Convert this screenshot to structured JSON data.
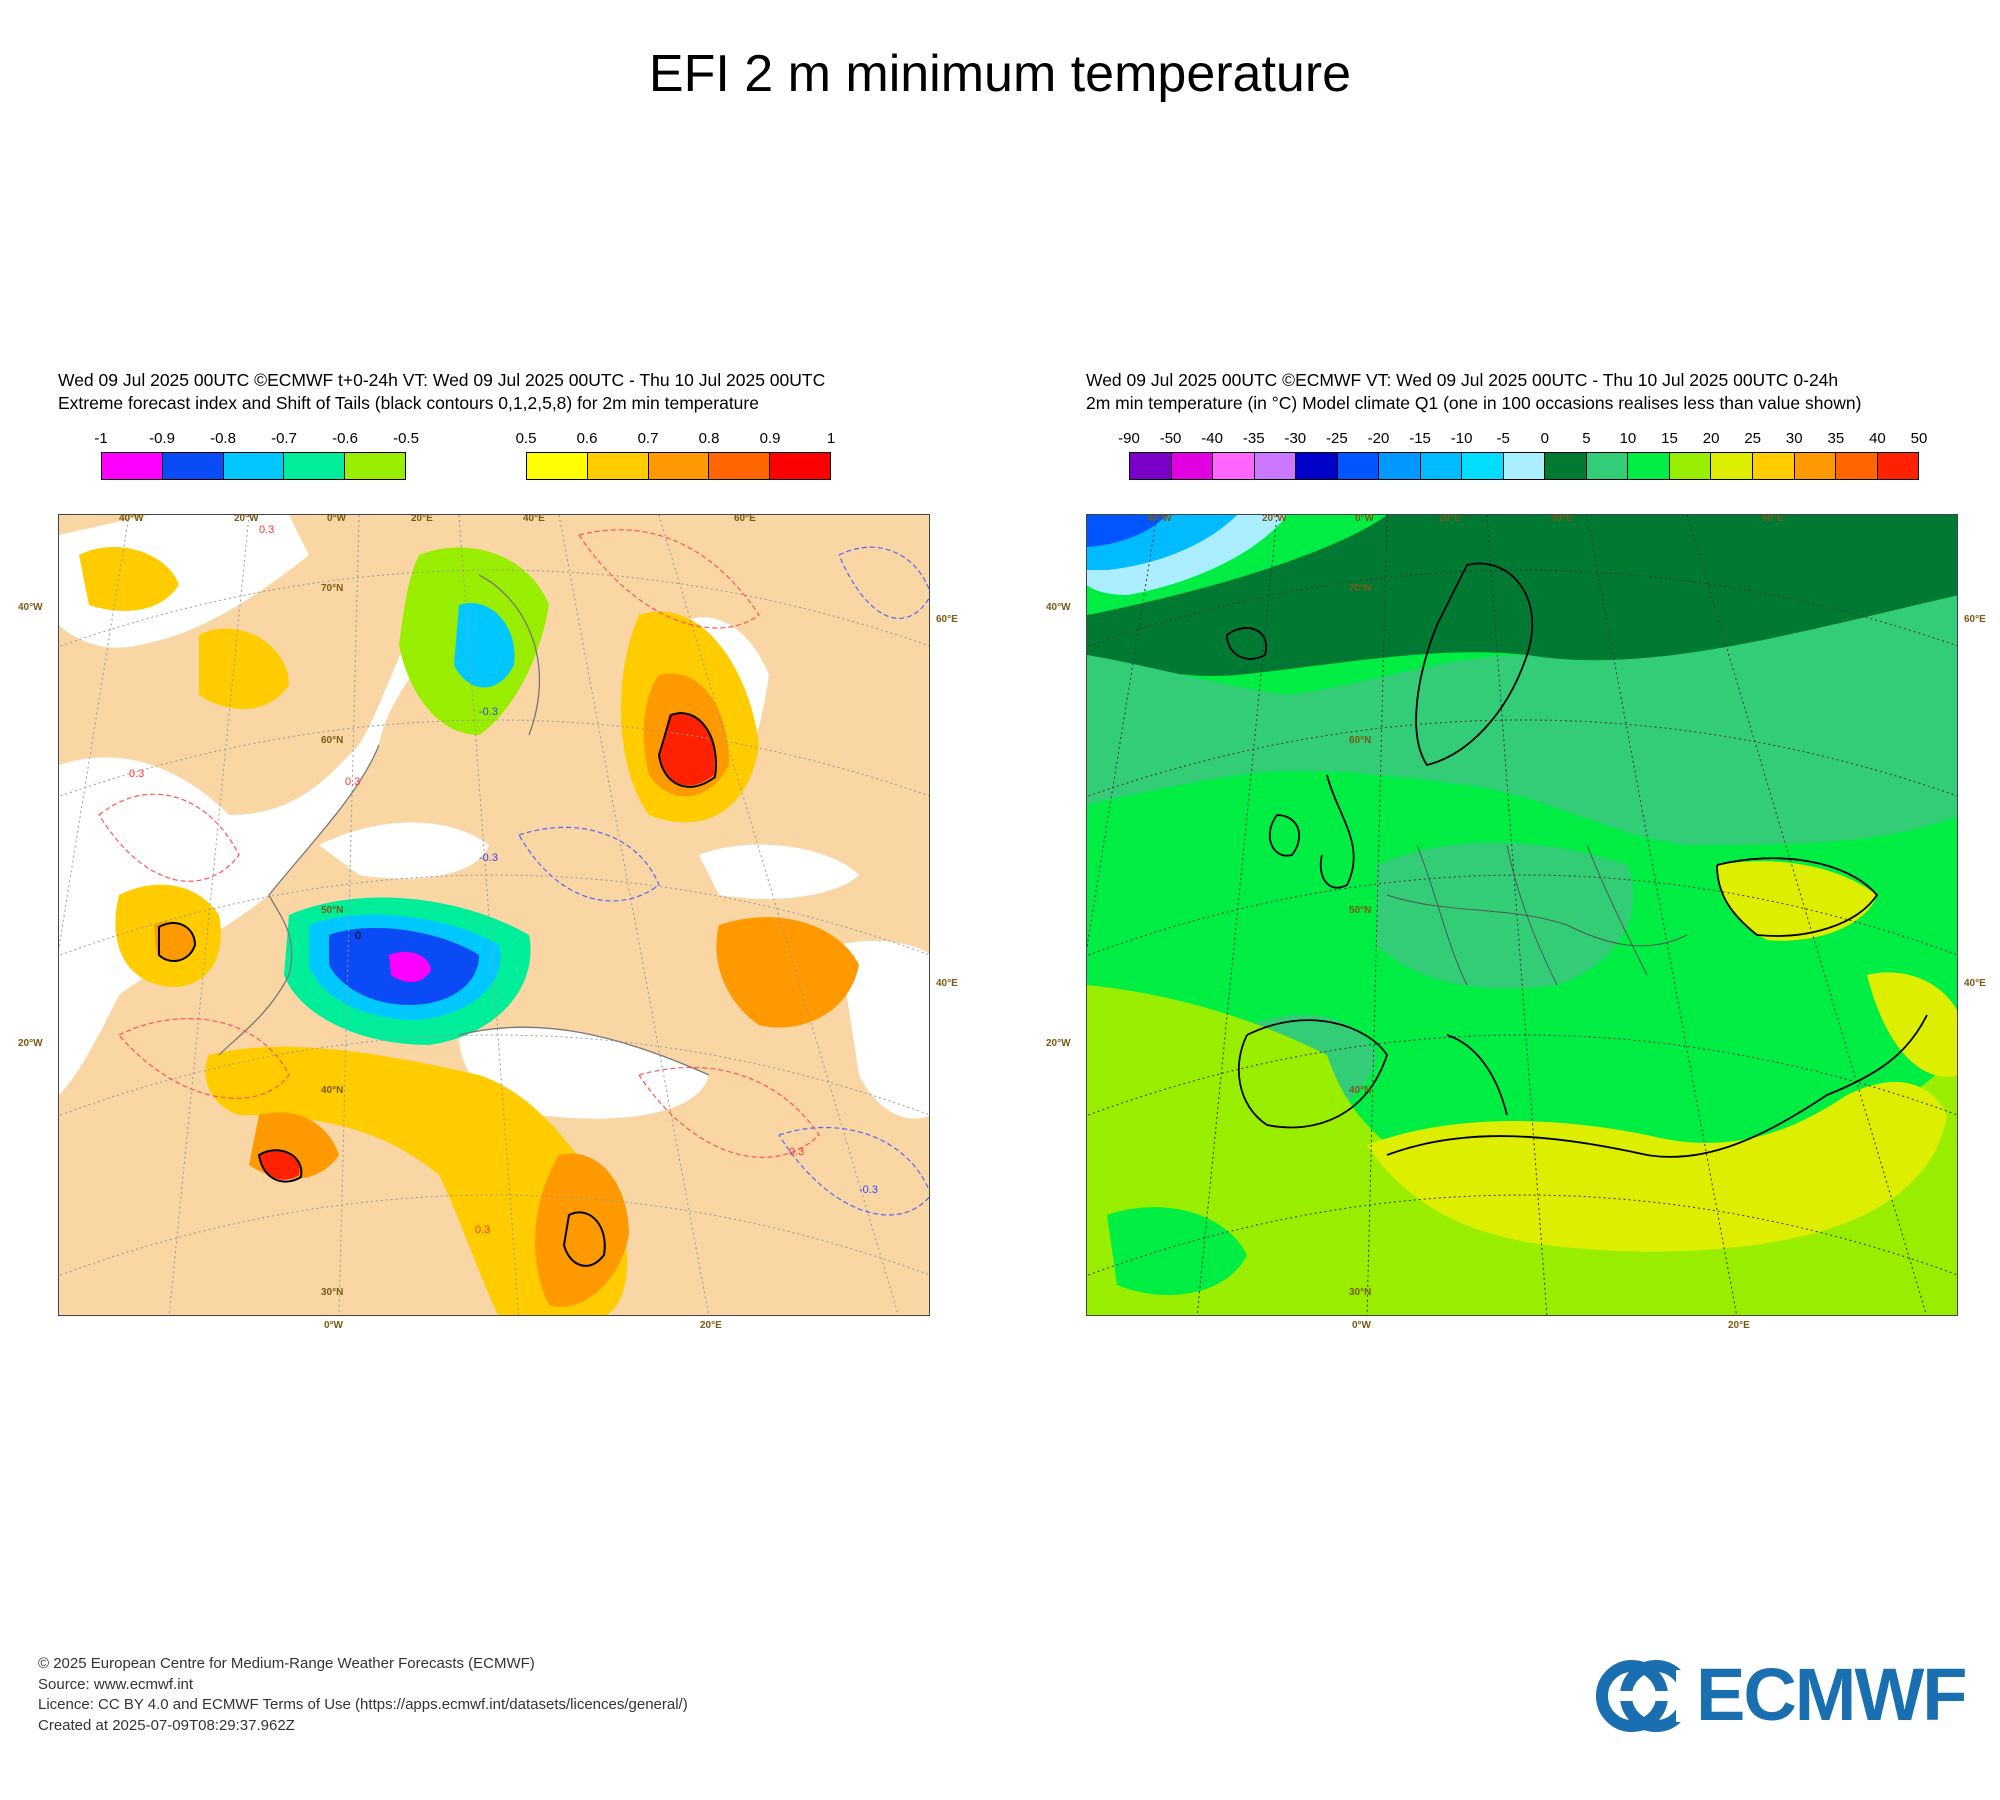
{
  "title": "EFI 2 m minimum temperature",
  "left_panel": {
    "header_line1": "Wed 09 Jul 2025 00UTC ©ECMWF t+0-24h  VT: Wed 09 Jul 2025 00UTC - Thu 10 Jul 2025 00UTC",
    "header_line2": "Extreme forecast index and Shift of Tails (black contours 0,1,2,5,8) for 2m min temperature",
    "legend_negative": {
      "ticks": [
        "-1",
        "-0.9",
        "-0.8",
        "-0.7",
        "-0.6",
        "-0.5"
      ],
      "colors": [
        "#ff00ff",
        "#0a4bf5",
        "#00c8ff",
        "#00ee99",
        "#99ee00"
      ]
    },
    "legend_positive": {
      "ticks": [
        "0.5",
        "0.6",
        "0.7",
        "0.8",
        "0.9",
        "1"
      ],
      "colors": [
        "#ffff00",
        "#ffcc00",
        "#ff9900",
        "#ff6600",
        "#ff0000"
      ]
    },
    "lon_labels_top": [
      "40°W",
      "20°W",
      "0°W",
      "20°E",
      "40°E",
      "60°E"
    ],
    "lon_labels_bottom": [
      "0°W",
      "20°E"
    ],
    "lat_labels_left": [
      "40°W",
      "20°W"
    ],
    "lat_labels_right": [
      "60°E",
      "40°E"
    ],
    "lat_labels_inner": [
      "70°N",
      "60°N",
      "50°N",
      "40°N",
      "30°N"
    ],
    "contour_labels": [
      "0.3",
      "-0.3",
      "0"
    ]
  },
  "right_panel": {
    "header_line1": "Wed 09 Jul 2025 00UTC ©ECMWF VT: Wed 09 Jul 2025 00UTC - Thu 10 Jul 2025 00UTC   0-24h",
    "header_line2": "2m min temperature (in °C)  Model climate Q1 (one in 100 occasions realises less than value shown)",
    "legend": {
      "ticks": [
        "-90",
        "-50",
        "-40",
        "-35",
        "-30",
        "-25",
        "-20",
        "-15",
        "-10",
        "-5",
        "0",
        "5",
        "10",
        "15",
        "20",
        "25",
        "30",
        "35",
        "40",
        "50"
      ],
      "colors": [
        "#7a00c8",
        "#e000e0",
        "#ff66ff",
        "#cc77ff",
        "#0000c8",
        "#0055ff",
        "#0099ff",
        "#00bbff",
        "#00ddff",
        "#aaeeff",
        "#007a33",
        "#33cc77",
        "#00ee44",
        "#99ee00",
        "#ddee00",
        "#ffcc00",
        "#ff9900",
        "#ff6600",
        "#ff2200"
      ]
    },
    "lon_labels_top": [
      "40°W",
      "20°W",
      "0°W",
      "20°E",
      "40°E",
      "60°E"
    ],
    "lon_labels_bottom": [
      "0°W",
      "20°E"
    ],
    "lat_labels_left": [
      "40°W",
      "20°W"
    ],
    "lat_labels_right": [
      "60°E",
      "40°E"
    ],
    "lat_labels_inner": [
      "70°N",
      "60°N",
      "50°N",
      "40°N",
      "30°N"
    ]
  },
  "footer": {
    "copyright": "© 2025 European Centre for Medium-Range Weather Forecasts (ECMWF)",
    "source": "Source: www.ecmwf.int",
    "licence": "Licence: CC BY 4.0 and ECMWF Terms of Use (https://apps.ecmwf.int/datasets/licences/general/)",
    "created": "Created at 2025-07-09T08:29:37.962Z"
  },
  "logo": {
    "text": "ECMWF",
    "color": "#1a6fb0"
  }
}
